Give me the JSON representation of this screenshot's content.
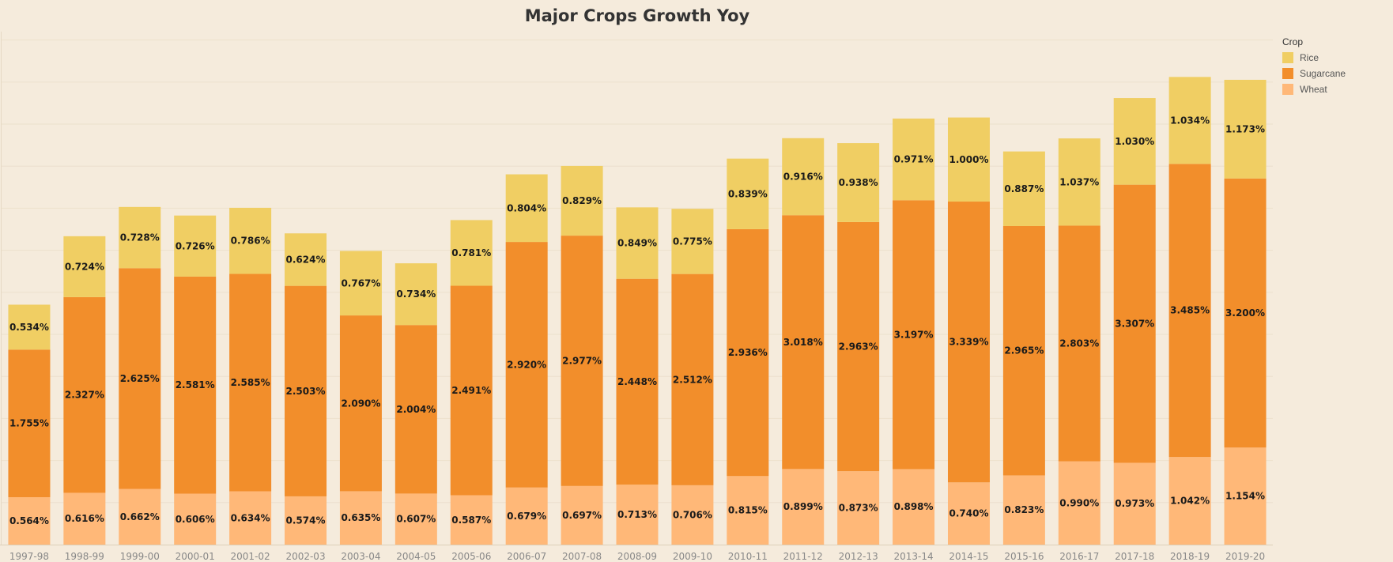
{
  "chart_data": {
    "type": "bar",
    "stacked": true,
    "title": "Major Crops Growth Yoy",
    "xlabel": "",
    "ylabel": "",
    "categories": [
      "1997-98",
      "1998-99",
      "1999-00",
      "2000-01",
      "2001-02",
      "2002-03",
      "2003-04",
      "2004-05",
      "2005-06",
      "2006-07",
      "2007-08",
      "2008-09",
      "2009-10",
      "2010-11",
      "2011-12",
      "2012-13",
      "2013-14",
      "2014-15",
      "2015-16",
      "2016-17",
      "2017-18",
      "2018-19",
      "2019-20"
    ],
    "series": [
      {
        "name": "Wheat",
        "color": "#ffb878",
        "values": [
          0.564,
          0.616,
          0.662,
          0.606,
          0.634,
          0.574,
          0.635,
          0.607,
          0.587,
          0.679,
          0.697,
          0.713,
          0.706,
          0.815,
          0.899,
          0.873,
          0.898,
          0.74,
          0.823,
          0.99,
          0.973,
          1.042,
          1.154
        ]
      },
      {
        "name": "Sugarcane",
        "color": "#f28e2b",
        "values": [
          1.755,
          2.327,
          2.625,
          2.581,
          2.585,
          2.503,
          2.09,
          2.004,
          2.491,
          2.92,
          2.977,
          2.448,
          2.512,
          2.936,
          3.018,
          2.963,
          3.197,
          3.339,
          2.965,
          2.803,
          3.307,
          3.485,
          3.2
        ]
      },
      {
        "name": "Rice",
        "color": "#f0ce63",
        "values": [
          0.534,
          0.724,
          0.728,
          0.726,
          0.786,
          0.624,
          0.767,
          0.734,
          0.781,
          0.804,
          0.829,
          0.849,
          0.775,
          0.839,
          0.916,
          0.938,
          0.971,
          1.0,
          0.887,
          1.037,
          1.03,
          1.034,
          1.173
        ]
      }
    ],
    "value_format": "%",
    "ylim": [
      0,
      6.1
    ],
    "grid": true,
    "legend": {
      "title": "Crop",
      "position": "top-right",
      "items": [
        "Rice",
        "Sugarcane",
        "Wheat"
      ]
    }
  }
}
